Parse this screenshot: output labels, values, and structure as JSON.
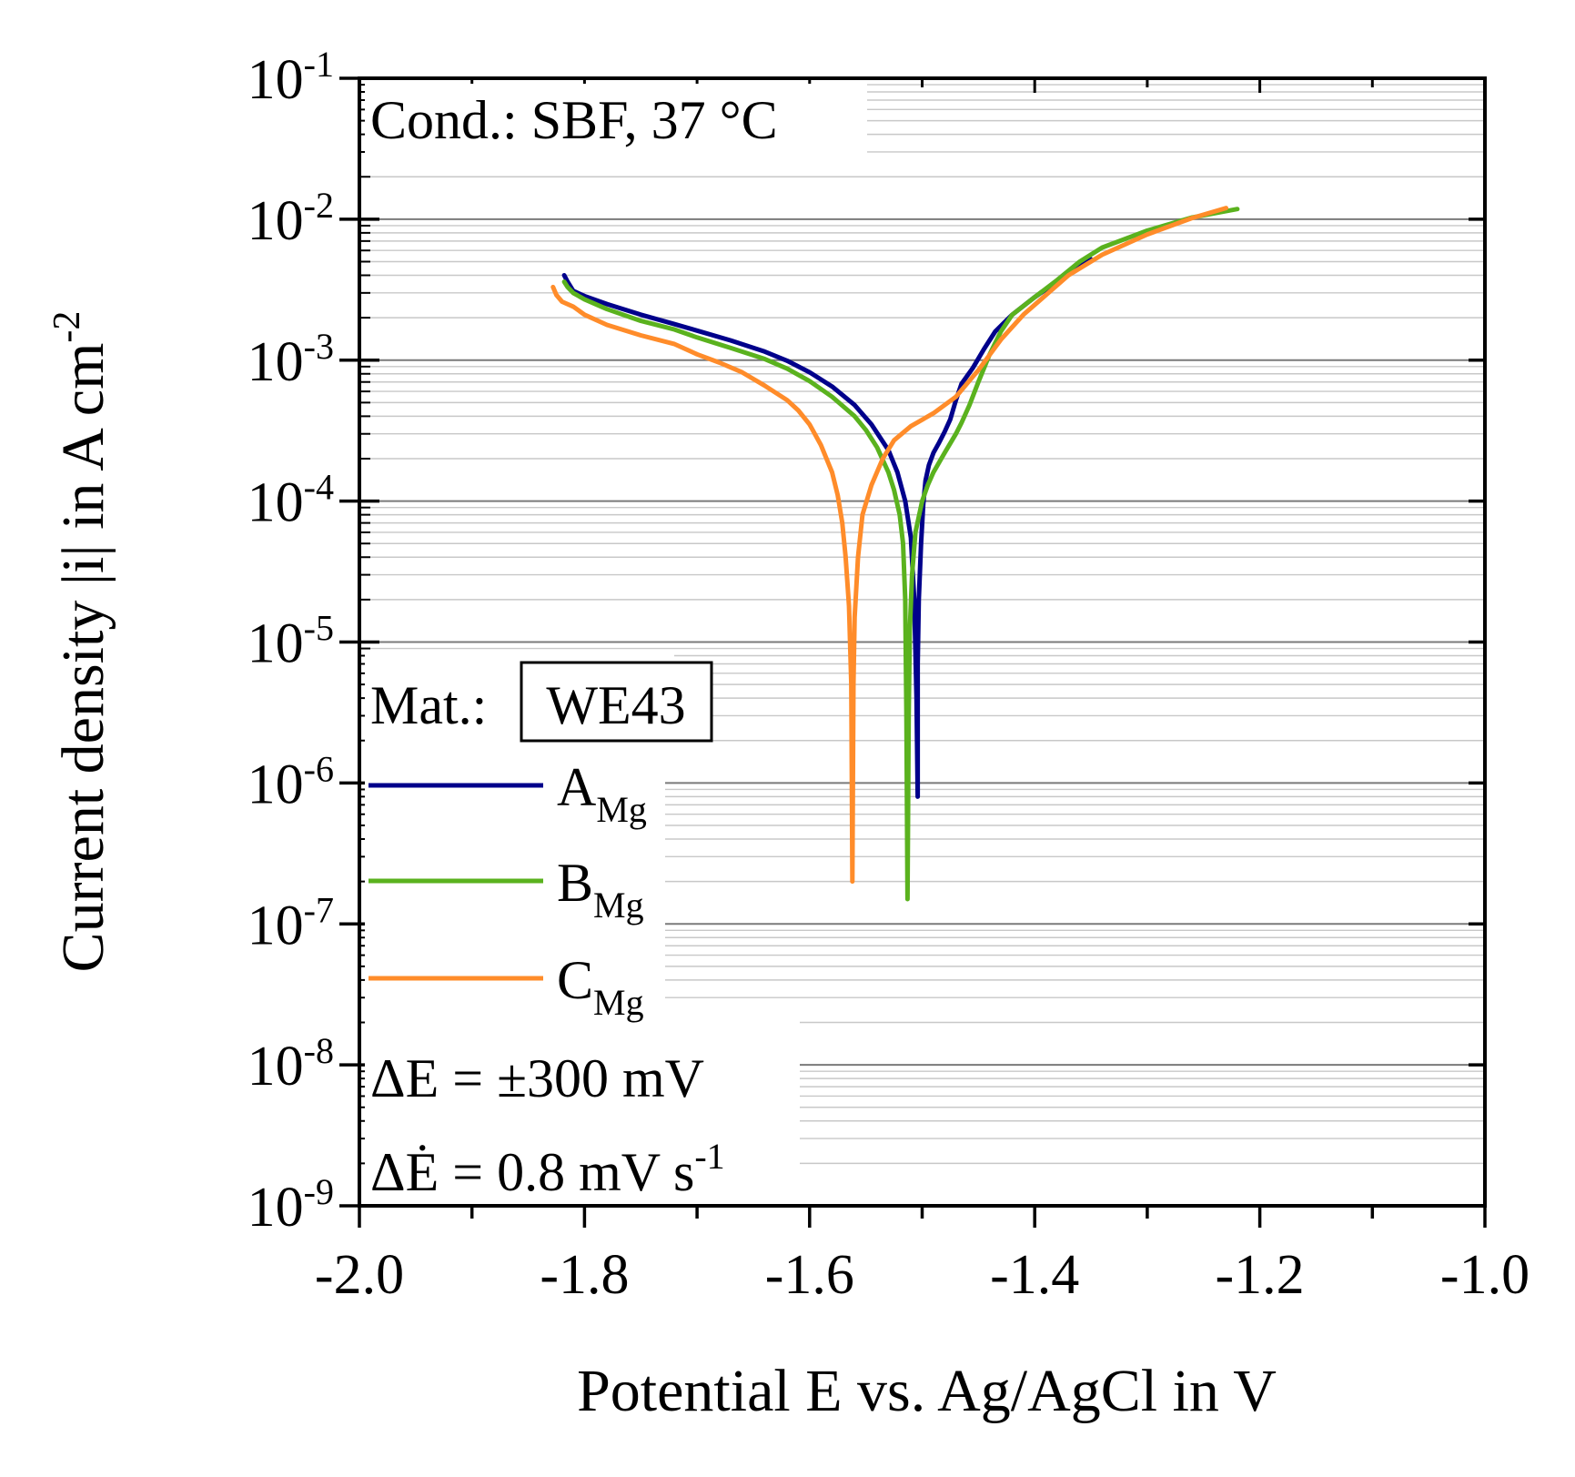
{
  "chart_data": {
    "type": "line",
    "title": "",
    "xlabel": "Potential E vs. Ag/AgCl in V",
    "ylabel": "Current density |i| in A cm",
    "ylabel_sup": "-2",
    "xlim": [
      -2.0,
      -1.0
    ],
    "ylim_log10": [
      -9,
      -1
    ],
    "x_ticks": [
      {
        "value": -2.0,
        "label": "-2.0"
      },
      {
        "value": -1.8,
        "label": "-1.8"
      },
      {
        "value": -1.6,
        "label": "-1.6"
      },
      {
        "value": -1.4,
        "label": "-1.4"
      },
      {
        "value": -1.2,
        "label": "-1.2"
      },
      {
        "value": -1.0,
        "label": "-1.0"
      }
    ],
    "y_ticks": [
      {
        "exp": -1,
        "base": "10",
        "sup": "-1"
      },
      {
        "exp": -2,
        "base": "10",
        "sup": "-2"
      },
      {
        "exp": -3,
        "base": "10",
        "sup": "-3"
      },
      {
        "exp": -4,
        "base": "10",
        "sup": "-4"
      },
      {
        "exp": -5,
        "base": "10",
        "sup": "-5"
      },
      {
        "exp": -6,
        "base": "10",
        "sup": "-6"
      },
      {
        "exp": -7,
        "base": "10",
        "sup": "-7"
      },
      {
        "exp": -8,
        "base": "10",
        "sup": "-8"
      },
      {
        "exp": -9,
        "base": "10",
        "sup": "-9"
      }
    ],
    "grid": true,
    "annotations": {
      "condition": "Cond.: SBF, 37 °C",
      "material_label": "Mat.:",
      "material": "WE43",
      "delta_e": "ΔE = ±300 mV",
      "scan_rate": "ΔĖ = 0.8 mV s",
      "scan_rate_sup": "-1"
    },
    "series": [
      {
        "name": "A",
        "subscript": "Mg",
        "color": "#00008b",
        "points": [
          [
            -1.818,
            0.004
          ],
          [
            -1.815,
            0.0036
          ],
          [
            -1.81,
            0.0031
          ],
          [
            -1.8,
            0.00285
          ],
          [
            -1.78,
            0.0025
          ],
          [
            -1.75,
            0.0021
          ],
          [
            -1.72,
            0.0018
          ],
          [
            -1.7,
            0.00162
          ],
          [
            -1.67,
            0.00138
          ],
          [
            -1.64,
            0.00115
          ],
          [
            -1.62,
            0.00099
          ],
          [
            -1.6,
            0.00082
          ],
          [
            -1.58,
            0.00065
          ],
          [
            -1.56,
            0.00048
          ],
          [
            -1.545,
            0.00035
          ],
          [
            -1.53,
            0.00023
          ],
          [
            -1.522,
            0.00016
          ],
          [
            -1.515,
            0.0001
          ],
          [
            -1.51,
            5.5e-05
          ],
          [
            -1.507,
            2e-05
          ],
          [
            -1.505,
            4e-06
          ],
          [
            -1.504,
            8e-07
          ],
          [
            -1.504,
            7e-06
          ],
          [
            -1.503,
            2e-05
          ],
          [
            -1.501,
            5e-05
          ],
          [
            -1.499,
            9.5e-05
          ],
          [
            -1.497,
            0.00014
          ],
          [
            -1.494,
            0.00018
          ],
          [
            -1.49,
            0.00022
          ],
          [
            -1.485,
            0.00026
          ],
          [
            -1.48,
            0.00031
          ],
          [
            -1.475,
            0.00038
          ],
          [
            -1.47,
            0.00052
          ],
          [
            -1.465,
            0.00068
          ],
          [
            -1.455,
            0.00088
          ],
          [
            -1.445,
            0.0012
          ],
          [
            -1.435,
            0.0016
          ],
          [
            -1.42,
            0.0021
          ],
          [
            -1.4,
            0.0028
          ],
          [
            -1.38,
            0.0036
          ],
          [
            -1.36,
            0.0047
          ],
          [
            -1.35,
            0.0052
          ]
        ]
      },
      {
        "name": "B",
        "subscript": "Mg",
        "color": "#5ab21e",
        "points": [
          [
            -1.818,
            0.0036
          ],
          [
            -1.815,
            0.0033
          ],
          [
            -1.81,
            0.003
          ],
          [
            -1.8,
            0.0027
          ],
          [
            -1.78,
            0.0023
          ],
          [
            -1.75,
            0.0019
          ],
          [
            -1.72,
            0.00165
          ],
          [
            -1.7,
            0.00145
          ],
          [
            -1.67,
            0.00122
          ],
          [
            -1.64,
            0.00102
          ],
          [
            -1.62,
            0.00087
          ],
          [
            -1.6,
            0.00071
          ],
          [
            -1.58,
            0.00055
          ],
          [
            -1.56,
            0.0004
          ],
          [
            -1.55,
            0.00032
          ],
          [
            -1.54,
            0.00024
          ],
          [
            -1.53,
            0.00016
          ],
          [
            -1.525,
            0.00012
          ],
          [
            -1.52,
            8e-05
          ],
          [
            -1.517,
            5e-05
          ],
          [
            -1.515,
            2e-05
          ],
          [
            -1.514,
            3e-06
          ],
          [
            -1.513,
            1.5e-07
          ],
          [
            -1.512,
            3e-06
          ],
          [
            -1.511,
            1.2e-05
          ],
          [
            -1.509,
            3e-05
          ],
          [
            -1.506,
            6e-05
          ],
          [
            -1.5,
            0.0001
          ],
          [
            -1.495,
            0.00013
          ],
          [
            -1.49,
            0.00016
          ],
          [
            -1.48,
            0.00022
          ],
          [
            -1.47,
            0.0003
          ],
          [
            -1.465,
            0.00036
          ],
          [
            -1.458,
            0.00048
          ],
          [
            -1.45,
            0.0007
          ],
          [
            -1.44,
            0.0011
          ],
          [
            -1.43,
            0.0016
          ],
          [
            -1.42,
            0.0021
          ],
          [
            -1.4,
            0.0028
          ],
          [
            -1.38,
            0.0037
          ],
          [
            -1.36,
            0.005
          ],
          [
            -1.34,
            0.0063
          ],
          [
            -1.3,
            0.0083
          ],
          [
            -1.26,
            0.0103
          ],
          [
            -1.22,
            0.0118
          ]
        ]
      },
      {
        "name": "C",
        "subscript": "Mg",
        "color": "#ff8c2a",
        "points": [
          [
            -1.828,
            0.0033
          ],
          [
            -1.825,
            0.0029
          ],
          [
            -1.82,
            0.0026
          ],
          [
            -1.81,
            0.0024
          ],
          [
            -1.8,
            0.0021
          ],
          [
            -1.78,
            0.00178
          ],
          [
            -1.75,
            0.0015
          ],
          [
            -1.72,
            0.0013
          ],
          [
            -1.7,
            0.0011
          ],
          [
            -1.68,
            0.00096
          ],
          [
            -1.66,
            0.00082
          ],
          [
            -1.64,
            0.00066
          ],
          [
            -1.62,
            0.00052
          ],
          [
            -1.61,
            0.00044
          ],
          [
            -1.6,
            0.00035
          ],
          [
            -1.59,
            0.00025
          ],
          [
            -1.58,
            0.00016
          ],
          [
            -1.575,
            0.00011
          ],
          [
            -1.571,
            7e-05
          ],
          [
            -1.568,
            4e-05
          ],
          [
            -1.565,
            1.8e-05
          ],
          [
            -1.563,
            5e-06
          ],
          [
            -1.562,
            2e-07
          ],
          [
            -1.561,
            5e-06
          ],
          [
            -1.56,
            1.5e-05
          ],
          [
            -1.557,
            4e-05
          ],
          [
            -1.553,
            8e-05
          ],
          [
            -1.545,
            0.00013
          ],
          [
            -1.535,
            0.0002
          ],
          [
            -1.525,
            0.00027
          ],
          [
            -1.51,
            0.00034
          ],
          [
            -1.49,
            0.00042
          ],
          [
            -1.47,
            0.00055
          ],
          [
            -1.45,
            0.00085
          ],
          [
            -1.43,
            0.0014
          ],
          [
            -1.41,
            0.0021
          ],
          [
            -1.39,
            0.0029
          ],
          [
            -1.37,
            0.004
          ],
          [
            -1.34,
            0.0056
          ],
          [
            -1.3,
            0.0078
          ],
          [
            -1.26,
            0.0102
          ],
          [
            -1.23,
            0.012
          ]
        ]
      }
    ]
  }
}
